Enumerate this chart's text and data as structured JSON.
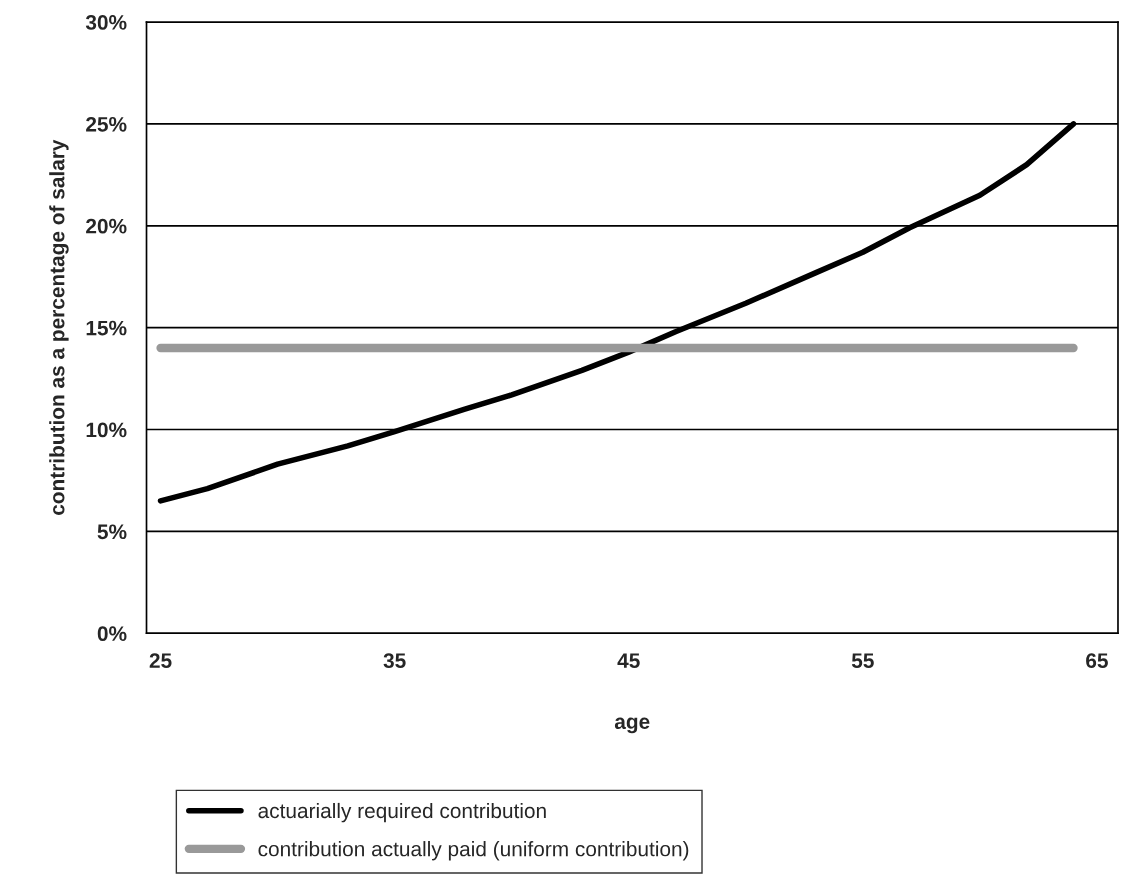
{
  "chart_data": {
    "type": "line",
    "xlabel": "age",
    "ylabel": "contribution as a percentage of salary",
    "xlim": [
      24.4,
      65.9
    ],
    "xticks": [
      25,
      35,
      45,
      55,
      65
    ],
    "ylim": [
      0,
      30
    ],
    "yticks": [
      {
        "value": 0,
        "label": "0%"
      },
      {
        "value": 5,
        "label": "5%"
      },
      {
        "value": 10,
        "label": "10%"
      },
      {
        "value": 15,
        "label": "15%"
      },
      {
        "value": 20,
        "label": "20%"
      },
      {
        "value": 25,
        "label": "25%"
      },
      {
        "value": 30,
        "label": "30%"
      }
    ],
    "grid": "y",
    "legend": "bottom",
    "marker": "none",
    "line_style": "solid",
    "series": [
      {
        "name": "actuarially required contribution",
        "color": "#000000",
        "x": [
          25,
          27,
          30,
          33,
          35,
          38,
          40,
          43,
          45,
          47,
          50,
          53,
          55,
          57,
          60,
          62,
          64
        ],
        "values": [
          6.5,
          7.1,
          8.3,
          9.2,
          9.9,
          11.0,
          11.7,
          12.9,
          13.8,
          14.8,
          16.2,
          17.7,
          18.7,
          19.9,
          21.5,
          23.0,
          25.0
        ]
      },
      {
        "name": "contribution actually paid (uniform contribution)",
        "color": "#999999",
        "x": [
          25,
          64
        ],
        "values": [
          14,
          14
        ]
      }
    ]
  }
}
